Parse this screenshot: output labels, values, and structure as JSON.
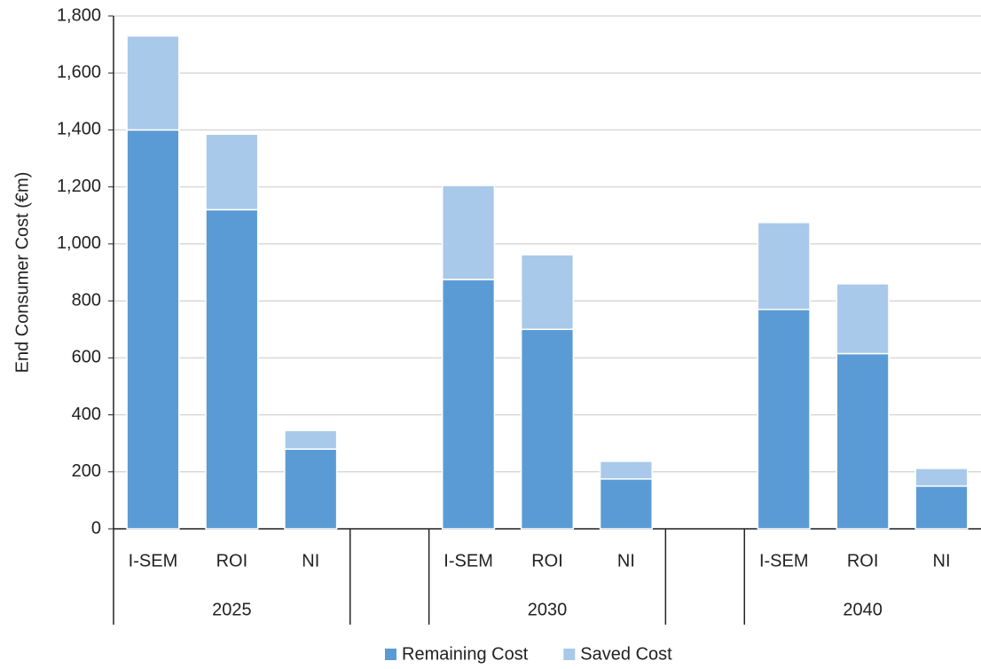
{
  "chart_data": {
    "type": "stacked_bar",
    "y_label": "End Consumer Cost (€m)",
    "categories": [
      "I-SEM",
      "ROI",
      "NI",
      null,
      "I-SEM",
      "ROI",
      "NI",
      null,
      "I-SEM",
      "ROI",
      "NI"
    ],
    "groups": [
      "2025",
      "2030",
      "2040"
    ],
    "series": [
      {
        "name": "Remaining Cost",
        "color": "#5b9bd5",
        "values": [
          1400,
          1120,
          280,
          null,
          875,
          700,
          175,
          null,
          770,
          615,
          150
        ]
      },
      {
        "name": "Saved Cost",
        "color": "#a9c9ea",
        "values": [
          330,
          265,
          65,
          null,
          330,
          262,
          62,
          null,
          305,
          245,
          62
        ]
      }
    ],
    "ylim": [
      0,
      1800
    ],
    "yticks": [
      0,
      200,
      400,
      600,
      800,
      {
        "value": 1000,
        "label": "1,000"
      },
      {
        "value": 1200,
        "label": "1,200"
      },
      {
        "value": 1400,
        "label": "1,400"
      },
      {
        "value": 1600,
        "label": "1,600"
      },
      {
        "value": 1800,
        "label": "1,800"
      }
    ],
    "grid": true,
    "legend": "bottom"
  }
}
